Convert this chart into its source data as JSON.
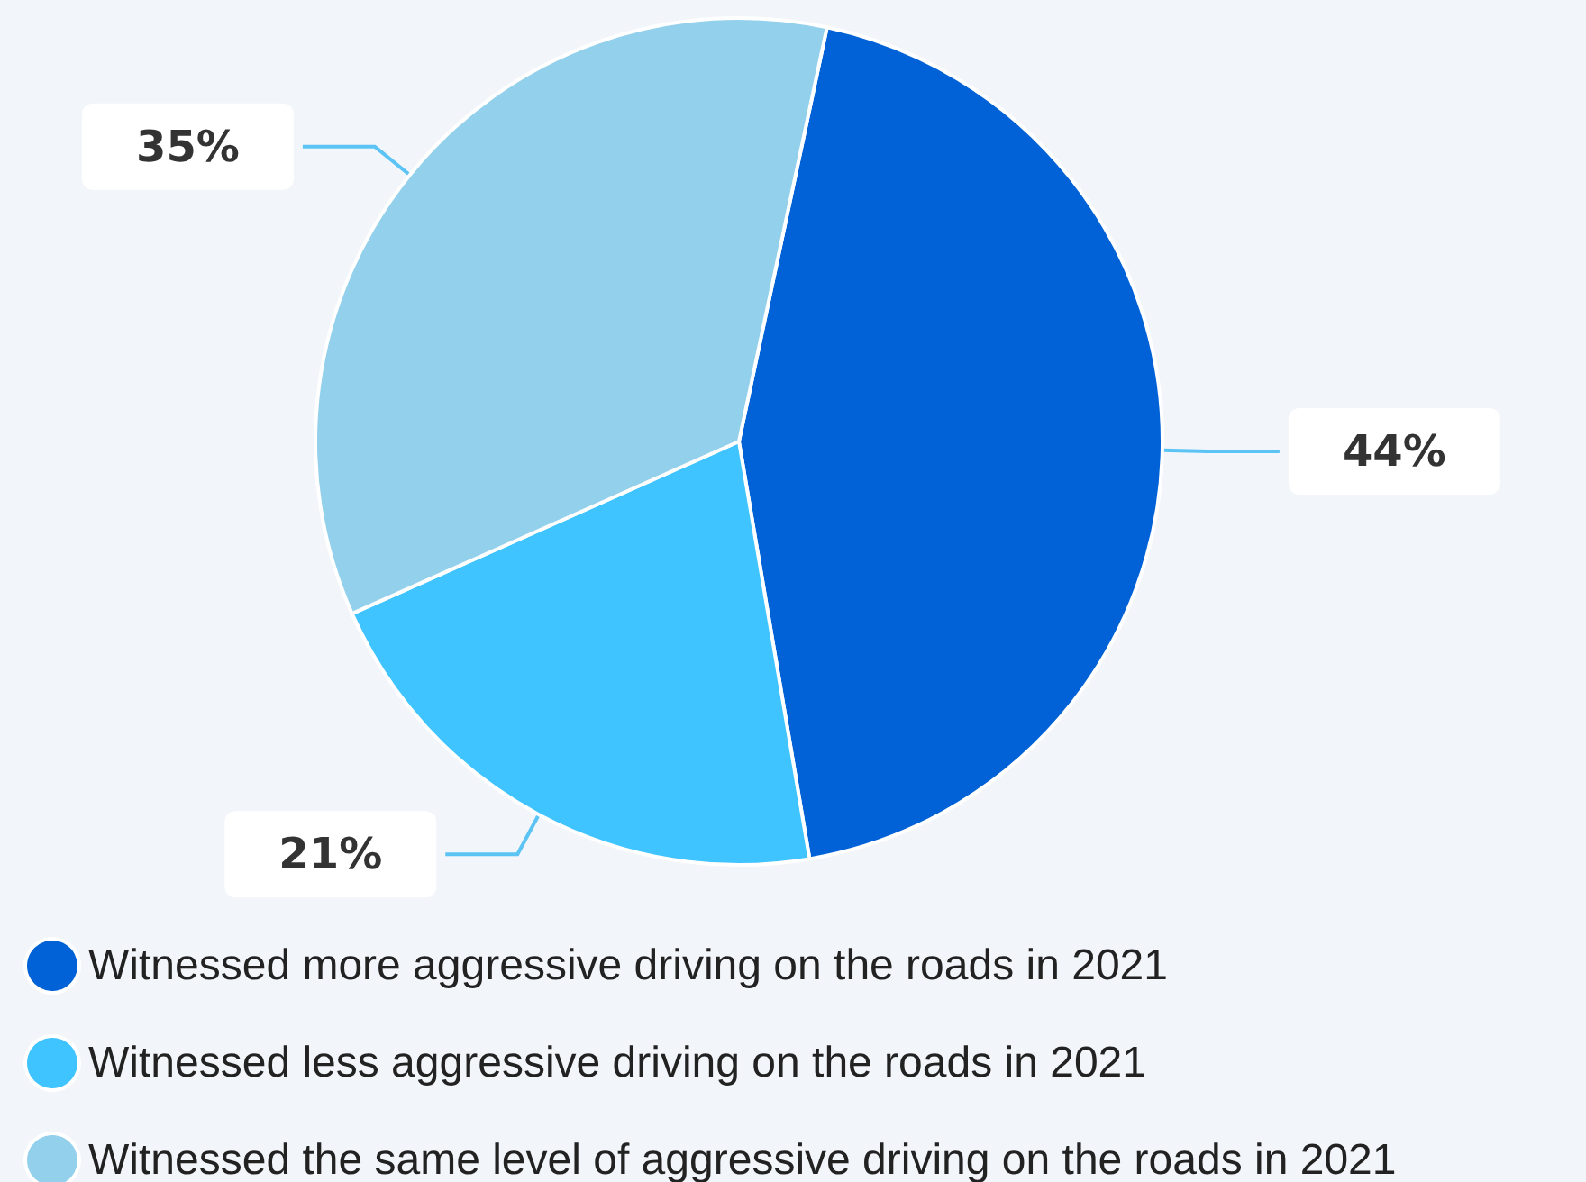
{
  "chart_data": {
    "type": "pie",
    "categories": [
      "Witnessed more aggressive driving on the roads in 2021",
      "Witnessed less aggressive driving on the roads in 2021",
      "Witnessed the same level of aggressive driving on the roads in 2021"
    ],
    "values": [
      44,
      21,
      35
    ],
    "colors": [
      "#0062d6",
      "#40c4ff",
      "#92d0ec"
    ],
    "value_labels": [
      "44%",
      "21%",
      "35%"
    ],
    "legend": "bottom"
  }
}
